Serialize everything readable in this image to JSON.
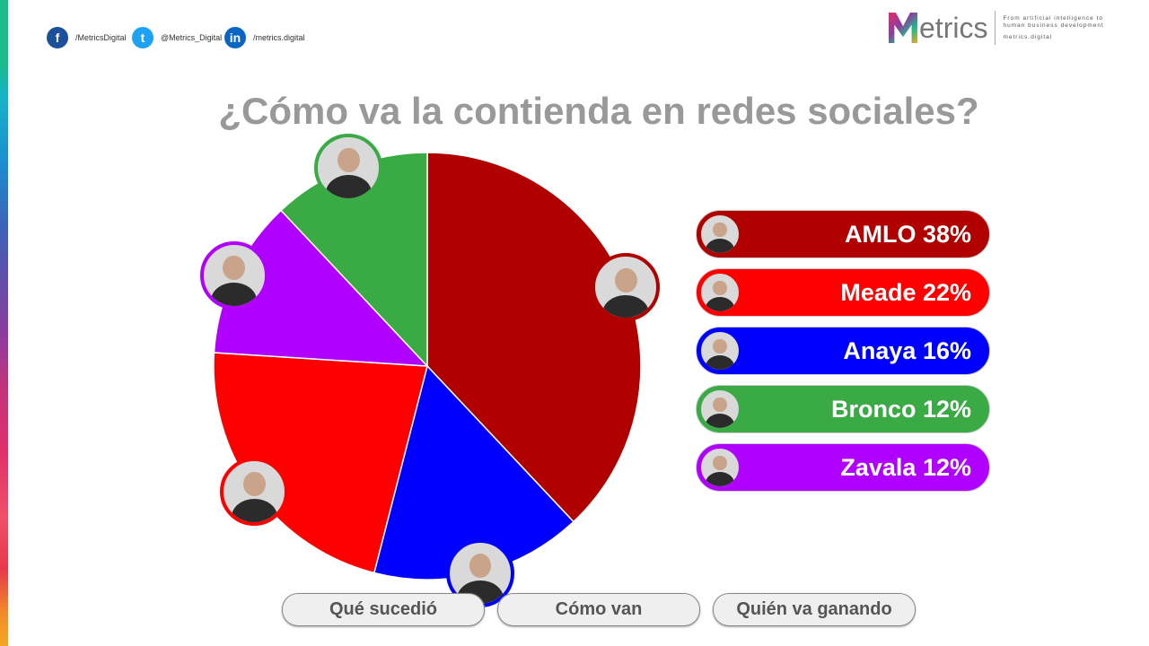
{
  "social": [
    {
      "icon": "facebook-icon",
      "glyph": "f",
      "label": "/MetricsDigital",
      "color": "#1c4f9c"
    },
    {
      "icon": "twitter-icon",
      "glyph": "t",
      "label": "@Metrics_Digital",
      "color": "#1da1f2"
    },
    {
      "icon": "linkedin-icon",
      "glyph": "in",
      "label": "/metrics.digital",
      "color": "#0a66c2"
    }
  ],
  "logo": {
    "word": "etrics",
    "tagline1": "From artificial intelligence to",
    "tagline2": "human business development",
    "url": "metrics.digital"
  },
  "title": "¿Cómo va la contienda en redes sociales?",
  "chart_data": {
    "type": "pie",
    "title": "¿Cómo va la contienda en redes sociales?",
    "slices": [
      {
        "name": "AMLO",
        "value": 38,
        "color": "#b00000",
        "label": "AMLO 38%"
      },
      {
        "name": "Anaya",
        "value": 16,
        "color": "#0000ff",
        "label": "Anaya 16%"
      },
      {
        "name": "Meade",
        "value": 22,
        "color": "#ff0000",
        "label": "Meade 22%"
      },
      {
        "name": "Zavala",
        "value": 12,
        "color": "#b000ff",
        "label": "Zavala 12%"
      },
      {
        "name": "Bronco",
        "value": 12,
        "color": "#3aaa44",
        "label": "Bronco 12%"
      }
    ]
  },
  "legend_order": [
    0,
    2,
    1,
    4,
    3
  ],
  "buttons": [
    "Qué sucedió",
    "Cómo van",
    "Quién va ganando"
  ]
}
